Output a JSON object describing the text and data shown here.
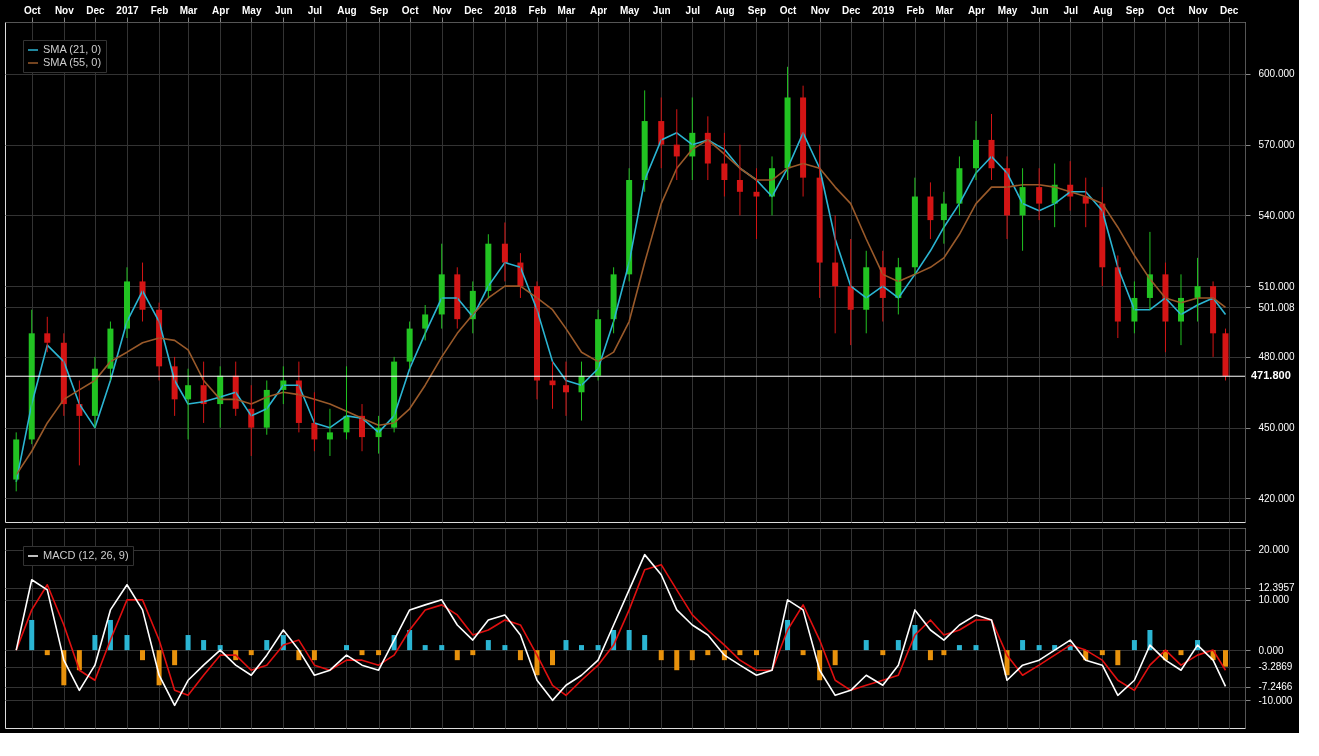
{
  "chart_data": [
    {
      "type": "candlestick",
      "x": [
        "2016-09-16",
        "2016-10-01",
        "2016-10-16",
        "2016-11-01",
        "2016-11-16",
        "2016-12-01",
        "2016-12-16",
        "2017-01-01",
        "2017-01-16",
        "2017-02-01",
        "2017-02-16",
        "2017-03-01",
        "2017-03-16",
        "2017-04-01",
        "2017-04-16",
        "2017-05-01",
        "2017-05-16",
        "2017-06-01",
        "2017-06-16",
        "2017-07-01",
        "2017-07-16",
        "2017-08-01",
        "2017-08-16",
        "2017-09-01",
        "2017-09-16",
        "2017-10-01",
        "2017-10-16",
        "2017-11-01",
        "2017-11-16",
        "2017-12-01",
        "2017-12-16",
        "2018-01-01",
        "2018-01-16",
        "2018-02-01",
        "2018-02-16",
        "2018-03-01",
        "2018-03-16",
        "2018-04-01",
        "2018-04-16",
        "2018-05-01",
        "2018-05-16",
        "2018-06-01",
        "2018-06-16",
        "2018-07-01",
        "2018-07-16",
        "2018-08-01",
        "2018-08-16",
        "2018-09-01",
        "2018-09-16",
        "2018-10-01",
        "2018-10-16",
        "2018-11-01",
        "2018-11-16",
        "2018-12-01",
        "2018-12-16",
        "2019-01-01",
        "2019-01-16",
        "2019-02-01",
        "2019-02-16",
        "2019-03-01",
        "2019-03-16",
        "2019-04-01",
        "2019-04-16",
        "2019-05-01",
        "2019-05-16",
        "2019-06-01",
        "2019-06-16",
        "2019-07-01",
        "2019-07-16",
        "2019-08-01",
        "2019-08-16",
        "2019-09-01",
        "2019-09-16",
        "2019-10-01",
        "2019-10-16",
        "2019-11-01",
        "2019-11-16",
        "2019-11-28"
      ],
      "ohlc": [
        [
          428,
          448,
          423,
          445
        ],
        [
          445,
          500,
          443,
          490
        ],
        [
          490,
          497,
          482,
          486
        ],
        [
          486,
          490,
          455,
          460
        ],
        [
          460,
          470,
          434,
          455
        ],
        [
          455,
          480,
          450,
          475
        ],
        [
          475,
          495,
          470,
          492
        ],
        [
          492,
          518,
          488,
          512
        ],
        [
          512,
          520,
          495,
          500
        ],
        [
          500,
          503,
          470,
          476
        ],
        [
          476,
          480,
          455,
          462
        ],
        [
          462,
          475,
          445,
          468
        ],
        [
          468,
          478,
          452,
          460
        ],
        [
          460,
          476,
          450,
          472
        ],
        [
          472,
          478,
          455,
          458
        ],
        [
          458,
          468,
          438,
          450
        ],
        [
          450,
          470,
          447,
          466
        ],
        [
          466,
          476,
          460,
          470
        ],
        [
          470,
          478,
          448,
          452
        ],
        [
          452,
          465,
          440,
          445
        ],
        [
          445,
          458,
          438,
          448
        ],
        [
          448,
          476,
          445,
          455
        ],
        [
          455,
          460,
          440,
          446
        ],
        [
          446,
          455,
          439,
          450
        ],
        [
          450,
          480,
          448,
          478
        ],
        [
          478,
          495,
          475,
          492
        ],
        [
          492,
          502,
          487,
          498
        ],
        [
          498,
          528,
          492,
          515
        ],
        [
          515,
          518,
          492,
          496
        ],
        [
          496,
          512,
          490,
          508
        ],
        [
          508,
          532,
          505,
          528
        ],
        [
          528,
          537,
          512,
          520
        ],
        [
          520,
          524,
          505,
          510
        ],
        [
          510,
          512,
          462,
          470
        ],
        [
          470,
          478,
          458,
          468
        ],
        [
          468,
          478,
          455,
          465
        ],
        [
          465,
          478,
          453,
          472
        ],
        [
          472,
          500,
          470,
          496
        ],
        [
          496,
          518,
          490,
          515
        ],
        [
          515,
          560,
          512,
          555
        ],
        [
          555,
          593,
          550,
          580
        ],
        [
          580,
          590,
          560,
          570
        ],
        [
          570,
          585,
          555,
          565
        ],
        [
          565,
          590,
          555,
          575
        ],
        [
          575,
          582,
          555,
          562
        ],
        [
          562,
          575,
          548,
          555
        ],
        [
          555,
          570,
          540,
          550
        ],
        [
          550,
          560,
          530,
          548
        ],
        [
          548,
          565,
          540,
          560
        ],
        [
          560,
          603,
          555,
          590
        ],
        [
          590,
          595,
          548,
          556
        ],
        [
          556,
          570,
          505,
          520
        ],
        [
          520,
          540,
          490,
          510
        ],
        [
          510,
          530,
          485,
          500
        ],
        [
          500,
          525,
          490,
          518
        ],
        [
          518,
          525,
          495,
          505
        ],
        [
          505,
          522,
          498,
          518
        ],
        [
          518,
          556,
          515,
          548
        ],
        [
          548,
          554,
          530,
          538
        ],
        [
          538,
          550,
          528,
          545
        ],
        [
          545,
          565,
          540,
          560
        ],
        [
          560,
          580,
          555,
          572
        ],
        [
          572,
          583,
          555,
          560
        ],
        [
          560,
          565,
          530,
          540
        ],
        [
          540,
          560,
          525,
          552
        ],
        [
          552,
          560,
          538,
          545
        ],
        [
          545,
          562,
          535,
          553
        ],
        [
          553,
          563,
          542,
          548
        ],
        [
          548,
          556,
          535,
          545
        ],
        [
          545,
          552,
          510,
          518
        ],
        [
          518,
          523,
          488,
          495
        ],
        [
          495,
          512,
          490,
          505
        ],
        [
          505,
          533,
          500,
          515
        ],
        [
          515,
          520,
          482,
          495
        ],
        [
          495,
          515,
          485,
          505
        ],
        [
          505,
          522,
          495,
          510
        ],
        [
          510,
          512,
          480,
          490
        ],
        [
          490,
          492,
          470,
          471.8
        ]
      ],
      "colors": [
        "#22c322",
        "#22c322",
        "#d41515",
        "#d41515",
        "#d41515",
        "#22c322",
        "#22c322",
        "#22c322",
        "#d41515",
        "#d41515",
        "#d41515",
        "#22c322",
        "#d41515",
        "#22c322",
        "#d41515",
        "#d41515",
        "#22c322",
        "#22c322",
        "#d41515",
        "#d41515",
        "#22c322",
        "#22c322",
        "#d41515",
        "#22c322",
        "#22c322",
        "#22c322",
        "#22c322",
        "#22c322",
        "#d41515",
        "#22c322",
        "#22c322",
        "#d41515",
        "#d41515",
        "#d41515",
        "#d41515",
        "#d41515",
        "#22c322",
        "#22c322",
        "#22c322",
        "#22c322",
        "#22c322",
        "#d41515",
        "#d41515",
        "#22c322",
        "#d41515",
        "#d41515",
        "#d41515",
        "#d41515",
        "#22c322",
        "#22c322",
        "#d41515",
        "#d41515",
        "#d41515",
        "#d41515",
        "#22c322",
        "#d41515",
        "#22c322",
        "#22c322",
        "#d41515",
        "#22c322",
        "#22c322",
        "#22c322",
        "#d41515",
        "#d41515",
        "#22c322",
        "#d41515",
        "#22c322",
        "#d41515",
        "#d41515",
        "#d41515",
        "#d41515",
        "#22c322",
        "#22c322",
        "#d41515",
        "#22c322",
        "#22c322",
        "#d41515",
        "#d41515"
      ],
      "series": [
        {
          "name": "SMA (21, 0)",
          "type": "line",
          "color": "#2bb5d3",
          "values": [
            427,
            460,
            485,
            478,
            460,
            450,
            470,
            495,
            508,
            495,
            470,
            460,
            461,
            463,
            465,
            455,
            458,
            468,
            468,
            452,
            450,
            455,
            454,
            448,
            455,
            475,
            490,
            505,
            505,
            497,
            510,
            520,
            518,
            500,
            478,
            470,
            468,
            475,
            495,
            520,
            555,
            572,
            575,
            570,
            572,
            568,
            560,
            555,
            548,
            560,
            575,
            560,
            530,
            510,
            505,
            510,
            505,
            515,
            525,
            535,
            545,
            558,
            565,
            558,
            545,
            542,
            545,
            550,
            550,
            542,
            518,
            500,
            500,
            505,
            498,
            502,
            505,
            498
          ]
        },
        {
          "name": "SMA (55, 0)",
          "type": "line",
          "color": "#9a5a2a",
          "values": [
            430,
            440,
            452,
            462,
            466,
            470,
            478,
            482,
            486,
            488,
            487,
            483,
            470,
            462,
            462,
            460,
            463,
            465,
            464,
            462,
            460,
            457,
            454,
            451,
            452,
            458,
            468,
            480,
            490,
            498,
            505,
            510,
            510,
            505,
            500,
            492,
            482,
            478,
            482,
            495,
            520,
            545,
            560,
            568,
            572,
            566,
            560,
            555,
            555,
            560,
            562,
            560,
            552,
            545,
            530,
            515,
            512,
            515,
            518,
            522,
            532,
            545,
            552,
            552,
            553,
            553,
            552,
            550,
            548,
            545,
            535,
            523,
            513,
            505,
            503,
            505,
            505,
            501
          ]
        }
      ],
      "xlim": [
        "2016-09-10",
        "2019-12-12"
      ],
      "xticks": [
        {
          "value": "2016-10-01",
          "label": "Oct"
        },
        {
          "value": "2016-11-01",
          "label": "Nov"
        },
        {
          "value": "2016-12-01",
          "label": "Dec"
        },
        {
          "value": "2017-01-01",
          "label": "2017"
        },
        {
          "value": "2017-02-01",
          "label": "Feb"
        },
        {
          "value": "2017-03-01",
          "label": "Mar"
        },
        {
          "value": "2017-04-01",
          "label": "Apr"
        },
        {
          "value": "2017-05-01",
          "label": "May"
        },
        {
          "value": "2017-06-01",
          "label": "Jun"
        },
        {
          "value": "2017-07-01",
          "label": "Jul"
        },
        {
          "value": "2017-08-01",
          "label": "Aug"
        },
        {
          "value": "2017-09-01",
          "label": "Sep"
        },
        {
          "value": "2017-10-01",
          "label": "Oct"
        },
        {
          "value": "2017-11-01",
          "label": "Nov"
        },
        {
          "value": "2017-12-01",
          "label": "Dec"
        },
        {
          "value": "2018-01-01",
          "label": "2018"
        },
        {
          "value": "2018-02-01",
          "label": "Feb"
        },
        {
          "value": "2018-03-01",
          "label": "Mar"
        },
        {
          "value": "2018-04-01",
          "label": "Apr"
        },
        {
          "value": "2018-05-01",
          "label": "May"
        },
        {
          "value": "2018-06-01",
          "label": "Jun"
        },
        {
          "value": "2018-07-01",
          "label": "Jul"
        },
        {
          "value": "2018-08-01",
          "label": "Aug"
        },
        {
          "value": "2018-09-01",
          "label": "Sep"
        },
        {
          "value": "2018-10-01",
          "label": "Oct"
        },
        {
          "value": "2018-11-01",
          "label": "Nov"
        },
        {
          "value": "2018-12-01",
          "label": "Dec"
        },
        {
          "value": "2019-01-01",
          "label": "2019"
        },
        {
          "value": "2019-02-01",
          "label": "Feb"
        },
        {
          "value": "2019-03-01",
          "label": "Mar"
        },
        {
          "value": "2019-04-01",
          "label": "Apr"
        },
        {
          "value": "2019-05-01",
          "label": "May"
        },
        {
          "value": "2019-06-01",
          "label": "Jun"
        },
        {
          "value": "2019-07-01",
          "label": "Jul"
        },
        {
          "value": "2019-08-01",
          "label": "Aug"
        },
        {
          "value": "2019-09-01",
          "label": "Sep"
        },
        {
          "value": "2019-10-01",
          "label": "Oct"
        },
        {
          "value": "2019-11-01",
          "label": "Nov"
        },
        {
          "value": "2019-12-01",
          "label": "Dec"
        }
      ],
      "ylim": [
        410,
        622
      ],
      "yticks": [
        {
          "value": 420,
          "label": "420.000"
        },
        {
          "value": 450,
          "label": "450.000"
        },
        {
          "value": 480,
          "label": "480.000"
        },
        {
          "value": 501.008,
          "label": "501.008"
        },
        {
          "value": 510,
          "label": "510.000"
        },
        {
          "value": 540,
          "label": "540.000"
        },
        {
          "value": 570,
          "label": "570.000"
        },
        {
          "value": 600,
          "label": "600.000"
        }
      ],
      "grid": true,
      "legend": "top left",
      "ref_lines": [
        {
          "axis": "y",
          "value": 471.8,
          "label": "471.800",
          "color": "#ffffff"
        }
      ]
    },
    {
      "type": "line",
      "x": [
        "2016-09-16",
        "2016-10-01",
        "2016-10-16",
        "2016-11-01",
        "2016-11-16",
        "2016-12-01",
        "2016-12-16",
        "2017-01-01",
        "2017-01-16",
        "2017-02-01",
        "2017-02-16",
        "2017-03-01",
        "2017-03-16",
        "2017-04-01",
        "2017-04-16",
        "2017-05-01",
        "2017-05-16",
        "2017-06-01",
        "2017-06-16",
        "2017-07-01",
        "2017-07-16",
        "2017-08-01",
        "2017-08-16",
        "2017-09-01",
        "2017-09-16",
        "2017-10-01",
        "2017-10-16",
        "2017-11-01",
        "2017-11-16",
        "2017-12-01",
        "2017-12-16",
        "2018-01-01",
        "2018-01-16",
        "2018-02-01",
        "2018-02-16",
        "2018-03-01",
        "2018-03-16",
        "2018-04-01",
        "2018-04-16",
        "2018-05-01",
        "2018-05-16",
        "2018-06-01",
        "2018-06-16",
        "2018-07-01",
        "2018-07-16",
        "2018-08-01",
        "2018-08-16",
        "2018-09-01",
        "2018-09-16",
        "2018-10-01",
        "2018-10-16",
        "2018-11-01",
        "2018-11-16",
        "2018-12-01",
        "2018-12-16",
        "2019-01-01",
        "2019-01-16",
        "2019-02-01",
        "2019-02-16",
        "2019-03-01",
        "2019-03-16",
        "2019-04-01",
        "2019-04-16",
        "2019-05-01",
        "2019-05-16",
        "2019-06-01",
        "2019-06-16",
        "2019-07-01",
        "2019-07-16",
        "2019-08-01",
        "2019-08-16",
        "2019-09-01",
        "2019-09-16",
        "2019-10-01",
        "2019-10-16",
        "2019-11-01",
        "2019-11-16",
        "2019-11-28"
      ],
      "series": [
        {
          "type": "bar",
          "values": [
            0,
            6,
            -1,
            -7,
            -4,
            3,
            6,
            3,
            -2,
            -7,
            -3,
            3,
            2,
            1,
            -2,
            -1,
            2,
            3,
            -2,
            -2,
            0,
            1,
            -1,
            -1,
            3,
            4,
            1,
            1,
            -2,
            -1,
            2,
            1,
            -2,
            -5,
            -3,
            2,
            1,
            1,
            4,
            4,
            3,
            -2,
            -4,
            -2,
            -1,
            -2,
            -1,
            -1,
            0,
            6,
            -1,
            -6,
            -3,
            0,
            2,
            -1,
            2,
            5,
            -2,
            -1,
            1,
            1,
            0,
            -5,
            2,
            1,
            1,
            1,
            -2,
            -1,
            -3,
            2,
            4,
            -2,
            -1,
            2,
            -2,
            -3.3
          ],
          "colors": [
            "#2bb5d3",
            "#2bb5d3",
            "#e8920c",
            "#e8920c",
            "#e8920c",
            "#2bb5d3",
            "#2bb5d3",
            "#2bb5d3",
            "#e8920c",
            "#e8920c",
            "#e8920c",
            "#2bb5d3",
            "#2bb5d3",
            "#2bb5d3",
            "#e8920c",
            "#e8920c",
            "#2bb5d3",
            "#2bb5d3",
            "#e8920c",
            "#e8920c",
            "#2bb5d3",
            "#2bb5d3",
            "#e8920c",
            "#e8920c",
            "#2bb5d3",
            "#2bb5d3",
            "#2bb5d3",
            "#2bb5d3",
            "#e8920c",
            "#e8920c",
            "#2bb5d3",
            "#2bb5d3",
            "#e8920c",
            "#e8920c",
            "#e8920c",
            "#2bb5d3",
            "#2bb5d3",
            "#2bb5d3",
            "#2bb5d3",
            "#2bb5d3",
            "#2bb5d3",
            "#e8920c",
            "#e8920c",
            "#e8920c",
            "#e8920c",
            "#e8920c",
            "#e8920c",
            "#e8920c",
            "#2bb5d3",
            "#2bb5d3",
            "#e8920c",
            "#e8920c",
            "#e8920c",
            "#2bb5d3",
            "#2bb5d3",
            "#e8920c",
            "#2bb5d3",
            "#2bb5d3",
            "#e8920c",
            "#e8920c",
            "#2bb5d3",
            "#2bb5d3",
            "#2bb5d3",
            "#e8920c",
            "#2bb5d3",
            "#2bb5d3",
            "#2bb5d3",
            "#2bb5d3",
            "#e8920c",
            "#e8920c",
            "#e8920c",
            "#2bb5d3",
            "#2bb5d3",
            "#e8920c",
            "#e8920c",
            "#2bb5d3",
            "#e8920c",
            "#e8920c"
          ]
        },
        {
          "type": "line",
          "color": "#e01010",
          "values": [
            0,
            8,
            13,
            5,
            -4,
            -6,
            2,
            10,
            10,
            2,
            -8,
            -9,
            -5,
            -1,
            -1,
            -4,
            -3,
            1,
            2,
            -3,
            -4,
            -2,
            -2,
            -3,
            -1,
            4,
            8,
            9,
            7,
            3,
            4,
            6,
            5,
            -1,
            -7,
            -9,
            -6,
            -3,
            1,
            8,
            16,
            17,
            12,
            7,
            4,
            1,
            -2,
            -4,
            -4,
            4,
            9,
            2,
            -6,
            -8,
            -7,
            -6,
            -5,
            3,
            6,
            3,
            4,
            6,
            6,
            -1,
            -5,
            -3,
            -1,
            1,
            0,
            -2,
            -6,
            -8,
            -3,
            0,
            -3,
            -1,
            0,
            -4
          ]
        },
        {
          "name": "MACD (12, 26, 9)",
          "type": "line",
          "color": "#ffffff",
          "values": [
            0,
            14,
            12,
            -2,
            -8,
            -3,
            8,
            13,
            8,
            -5,
            -11,
            -6,
            -3,
            0,
            -3,
            -5,
            -1,
            4,
            0,
            -5,
            -4,
            -1,
            -3,
            -4,
            2,
            8,
            9,
            10,
            5,
            2,
            6,
            7,
            3,
            -6,
            -10,
            -7,
            -5,
            -2,
            5,
            12,
            19,
            15,
            8,
            5,
            3,
            -1,
            -3,
            -5,
            -4,
            10,
            8,
            -4,
            -9,
            -8,
            -5,
            -7,
            -3,
            8,
            4,
            2,
            5,
            7,
            6,
            -6,
            -3,
            -2,
            0,
            2,
            -2,
            -3,
            -9,
            -6,
            1,
            -2,
            -4,
            1,
            -2,
            -7.2
          ]
        }
      ],
      "xlim": [
        "2016-09-10",
        "2019-12-12"
      ],
      "xticks": [
        {
          "value": "2016-10-01",
          "label": null
        },
        {
          "value": "2016-11-01",
          "label": null
        },
        {
          "value": "2016-12-01",
          "label": null
        },
        {
          "value": "2017-01-01",
          "label": null
        },
        {
          "value": "2017-02-01",
          "label": null
        },
        {
          "value": "2017-03-01",
          "label": null
        },
        {
          "value": "2017-04-01",
          "label": null
        },
        {
          "value": "2017-05-01",
          "label": null
        },
        {
          "value": "2017-06-01",
          "label": null
        },
        {
          "value": "2017-07-01",
          "label": null
        },
        {
          "value": "2017-08-01",
          "label": null
        },
        {
          "value": "2017-09-01",
          "label": null
        },
        {
          "value": "2017-10-01",
          "label": null
        },
        {
          "value": "2017-11-01",
          "label": null
        },
        {
          "value": "2017-12-01",
          "label": null
        },
        {
          "value": "2018-01-01",
          "label": null
        },
        {
          "value": "2018-02-01",
          "label": null
        },
        {
          "value": "2018-03-01",
          "label": null
        },
        {
          "value": "2018-04-01",
          "label": null
        },
        {
          "value": "2018-05-01",
          "label": null
        },
        {
          "value": "2018-06-01",
          "label": null
        },
        {
          "value": "2018-07-01",
          "label": null
        },
        {
          "value": "2018-08-01",
          "label": null
        },
        {
          "value": "2018-09-01",
          "label": null
        },
        {
          "value": "2018-10-01",
          "label": null
        },
        {
          "value": "2018-11-01",
          "label": null
        },
        {
          "value": "2018-12-01",
          "label": null
        },
        {
          "value": "2019-01-01",
          "label": null
        },
        {
          "value": "2019-02-01",
          "label": null
        },
        {
          "value": "2019-03-01",
          "label": null
        },
        {
          "value": "2019-04-01",
          "label": null
        },
        {
          "value": "2019-05-01",
          "label": null
        },
        {
          "value": "2019-06-01",
          "label": null
        },
        {
          "value": "2019-07-01",
          "label": null
        },
        {
          "value": "2019-08-01",
          "label": null
        },
        {
          "value": "2019-09-01",
          "label": null
        },
        {
          "value": "2019-10-01",
          "label": null
        },
        {
          "value": "2019-11-01",
          "label": null
        },
        {
          "value": "2019-12-01",
          "label": null
        }
      ],
      "ylim": [
        -15.5,
        24.3
      ],
      "yticks": [
        {
          "value": -10,
          "label": "-10.000"
        },
        {
          "value": -7.2466,
          "label": "-7.2466"
        },
        {
          "value": -3.2869,
          "label": "-3.2869"
        },
        {
          "value": 0,
          "label": "0.000"
        },
        {
          "value": 10,
          "label": "10.000"
        },
        {
          "value": 12.3957,
          "label": "12.3957"
        },
        {
          "value": 20,
          "label": "20.000"
        }
      ],
      "grid": true,
      "legend": "top left",
      "tick_labels": "y"
    }
  ]
}
